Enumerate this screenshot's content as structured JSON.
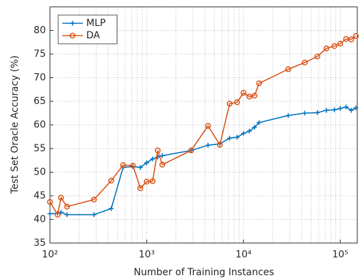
{
  "chart_data": {
    "type": "line",
    "xlabel": "Number of Training Instances",
    "ylabel": "Test Set Oracle Accuracy (%)",
    "xscale": "log",
    "grid": true,
    "legend": "upper left",
    "x": [
      100,
      120,
      130,
      150,
      285,
      430,
      570,
      720,
      860,
      1000,
      1150,
      1300,
      1450,
      2880,
      4300,
      5700,
      7200,
      8600,
      10000,
      11500,
      13000,
      14500,
      29000,
      43000,
      58000,
      72000,
      87000,
      100000,
      115000,
      130000,
      145000
    ],
    "series": [
      {
        "name": "MLP",
        "color": "#0072bd",
        "marker": "plus",
        "values": [
          41.2,
          41.3,
          41.5,
          41,
          41,
          42.3,
          51,
          51.2,
          51,
          52,
          52.8,
          53.2,
          53.5,
          54.6,
          55.7,
          56,
          57.2,
          57.4,
          58.2,
          58.7,
          59.5,
          60.5,
          62,
          62.5,
          62.6,
          63.1,
          63.2,
          63.5,
          63.8,
          63.1,
          63.6
        ]
      },
      {
        "name": "DA",
        "color": "#d95319",
        "marker": "circle",
        "values": [
          43.7,
          41,
          44.6,
          42.7,
          44.2,
          48.2,
          51.5,
          51.4,
          46.6,
          48,
          48.1,
          54.6,
          51.6,
          54.6,
          59.8,
          55.8,
          64.5,
          64.8,
          66.8,
          66,
          66.2,
          68.8,
          71.8,
          73.2,
          74.5,
          76.2,
          76.7,
          77.2,
          78.2,
          78.1,
          78.8
        ]
      }
    ],
    "xlim": [
      100,
      150000
    ],
    "xticks": [
      {
        "value": 100,
        "label": "10²"
      },
      {
        "value": 1000,
        "label": "10³"
      },
      {
        "value": 10000,
        "label": "10⁴"
      },
      {
        "value": 100000,
        "label": "10⁵"
      }
    ],
    "xminorticks": [
      200,
      300,
      400,
      500,
      600,
      700,
      800,
      900,
      2000,
      3000,
      4000,
      5000,
      6000,
      7000,
      8000,
      9000,
      20000,
      30000,
      40000,
      50000,
      60000,
      70000,
      80000,
      90000
    ],
    "ylim": [
      35,
      85
    ],
    "yticks": [
      35,
      40,
      45,
      50,
      55,
      60,
      65,
      70,
      75,
      80
    ]
  }
}
